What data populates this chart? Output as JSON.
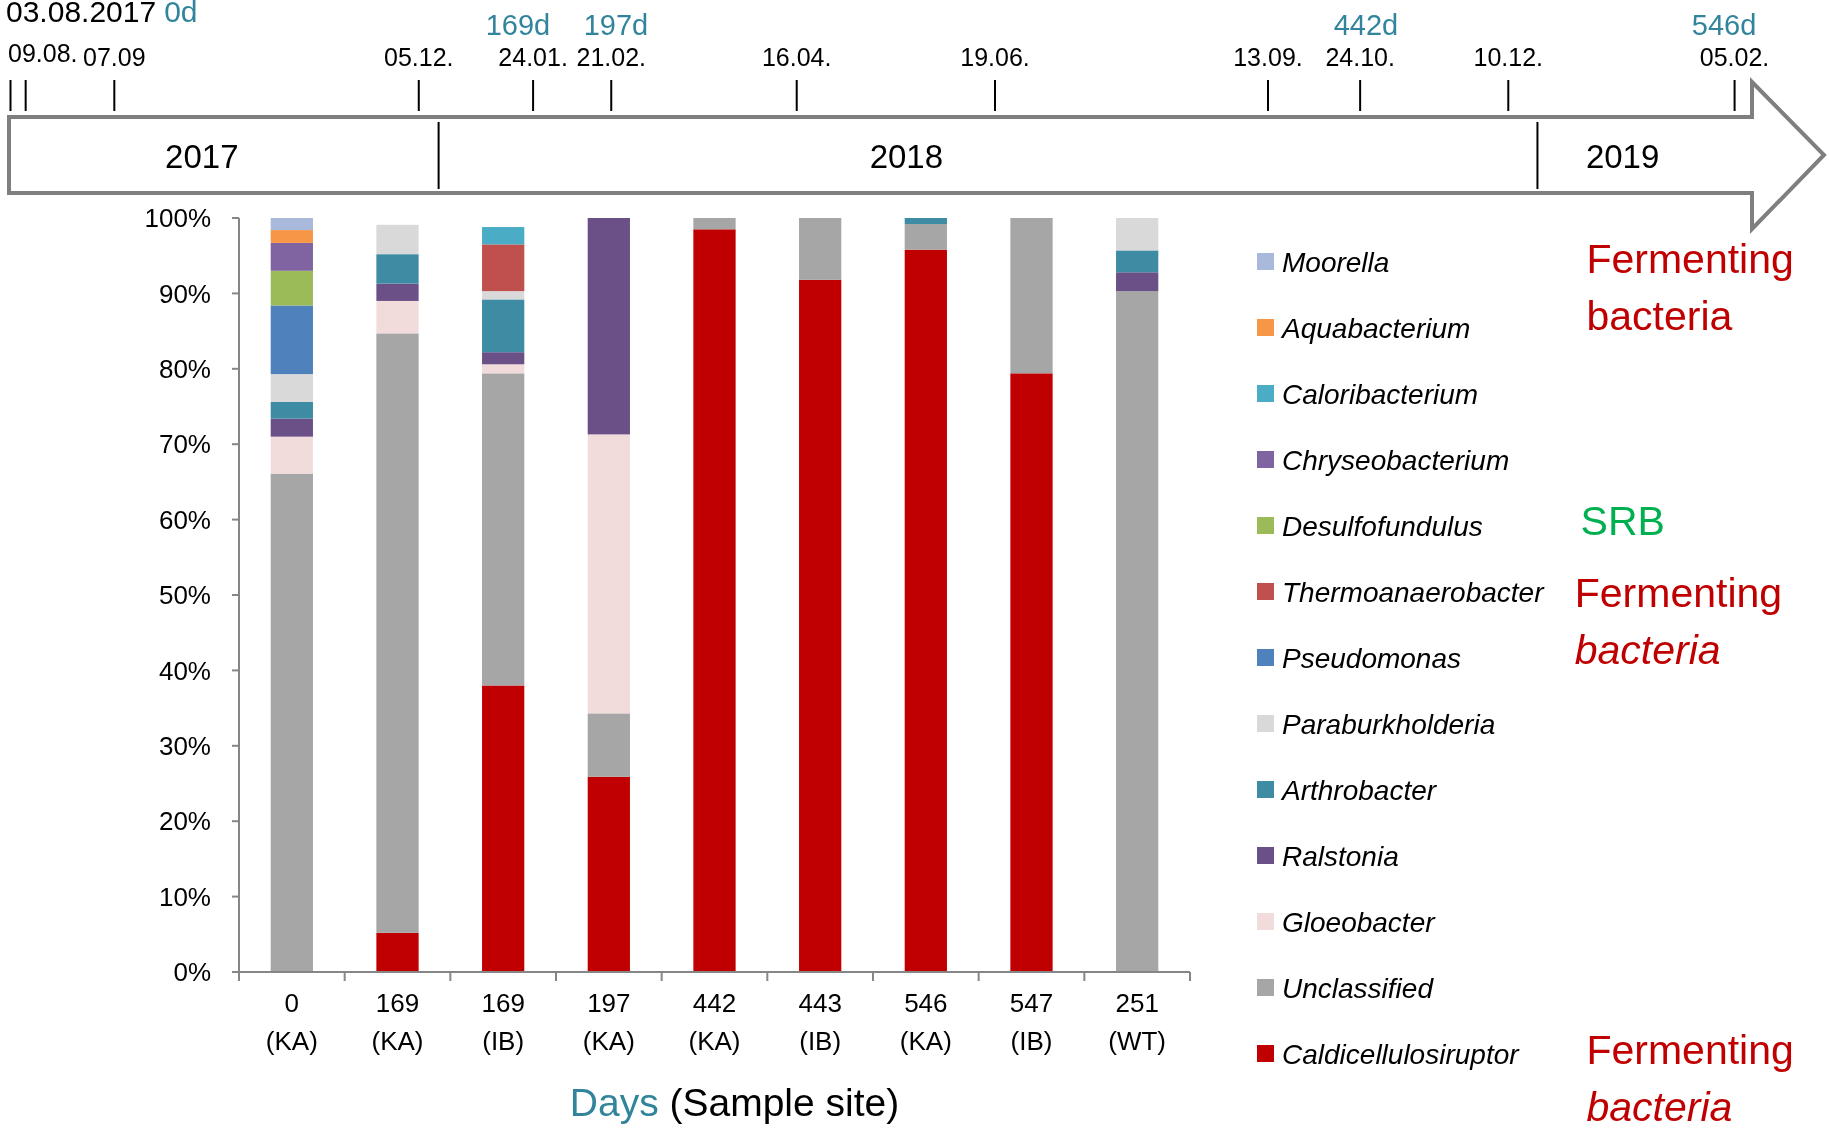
{
  "chart_data": {
    "type": "bar",
    "stacked": true,
    "xlabel": "Days (Sample site)",
    "categories": [
      "0 (KA)",
      "169 (KA)",
      "169 (IB)",
      "197 (KA)",
      "442 (KA)",
      "443 (IB)",
      "546 (KA)",
      "547 (IB)",
      "251 (WT)"
    ],
    "ylim": [
      0,
      100
    ],
    "yticks": [
      {
        "value": 0,
        "label": "0%"
      },
      {
        "value": 10,
        "label": "10%"
      },
      {
        "value": 20,
        "label": "20%"
      },
      {
        "value": 30,
        "label": "30%"
      },
      {
        "value": 40,
        "label": "40%"
      },
      {
        "value": 50,
        "label": "50%"
      },
      {
        "value": 60,
        "label": "60%"
      },
      {
        "value": 70,
        "label": "70%"
      },
      {
        "value": 80,
        "label": "80%"
      },
      {
        "value": 90,
        "label": "90%"
      },
      {
        "value": 100,
        "label": "100%"
      }
    ],
    "grid": false,
    "legend": "right",
    "series": [
      {
        "name": "Caldicellulosiruptor",
        "color": "#c00000",
        "values": [
          0,
          5.2,
          38.0,
          25.9,
          98.5,
          91.8,
          95.8,
          79.4,
          0
        ]
      },
      {
        "name": "Unclassified",
        "color": "#a6a6a6",
        "values": [
          66.1,
          79.5,
          41.4,
          8.4,
          1.5,
          8.2,
          3.4,
          20.6,
          90.3
        ]
      },
      {
        "name": "Gloeobacter",
        "color": "#f2dcdb",
        "values": [
          4.9,
          4.3,
          1.2,
          37.0,
          0,
          0,
          0,
          0,
          0
        ]
      },
      {
        "name": "Ralstonia",
        "color": "#6a5087",
        "values": [
          2.4,
          2.3,
          1.6,
          28.7,
          0,
          0,
          0,
          0,
          2.5
        ]
      },
      {
        "name": "Arthrobacter",
        "color": "#3d8ca4",
        "values": [
          2.2,
          3.9,
          7.0,
          0,
          0,
          0,
          0.8,
          0,
          2.9
        ]
      },
      {
        "name": "Paraburkholderia",
        "color": "#d9d9d9",
        "values": [
          3.7,
          3.9,
          1.1,
          0,
          0,
          0,
          0,
          0,
          4.3
        ]
      },
      {
        "name": "Pseudomonas",
        "color": "#4f81bd",
        "values": [
          9.1,
          0,
          0,
          0,
          0,
          0,
          0,
          0,
          0
        ]
      },
      {
        "name": "Thermoanaerobacter",
        "color": "#c0504d",
        "values": [
          0,
          0,
          6.2,
          0,
          0,
          0,
          0,
          0,
          0
        ]
      },
      {
        "name": "Desulfofundulus",
        "color": "#9bbb59",
        "values": [
          4.6,
          0,
          0,
          0,
          0,
          0,
          0,
          0,
          0
        ]
      },
      {
        "name": "Chryseobacterium",
        "color": "#8064a2",
        "values": [
          3.7,
          0,
          0,
          0,
          0,
          0,
          0,
          0,
          0
        ]
      },
      {
        "name": "Caloribacterium",
        "color": "#4bacc6",
        "values": [
          0,
          0,
          2.3,
          0,
          0,
          0,
          0,
          0,
          0
        ]
      },
      {
        "name": "Aquabacterium",
        "color": "#f79646",
        "values": [
          1.7,
          0,
          0,
          0,
          0,
          0,
          0,
          0,
          0
        ]
      },
      {
        "name": "Moorella",
        "color": "#a9b9db",
        "values": [
          1.6,
          0,
          0,
          0,
          0,
          0,
          0,
          0,
          0
        ]
      }
    ],
    "annotations": [
      "03.08.2017",
      "0d",
      "09.08.",
      "07.09",
      "05.12.",
      "24.01.",
      "21.02.",
      "16.04.",
      "19.06.",
      "13.09.",
      "24.10.",
      "10.12.",
      "05.02.",
      "169d",
      "197d",
      "442d",
      "546d",
      "2017",
      "2018",
      "2019",
      "Fermenting bacteria",
      "SRB",
      "Fermenting bacteria",
      "Fermenting bacteria"
    ]
  }
}
